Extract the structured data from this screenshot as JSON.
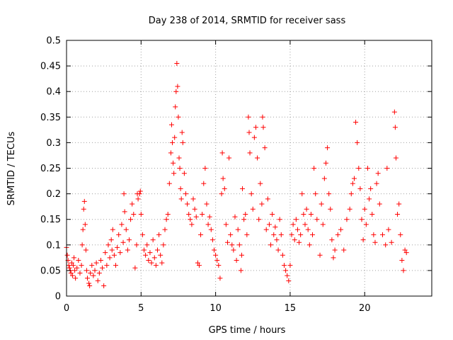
{
  "chart_data": {
    "type": "scatter",
    "title": "Day 238 of 2014, SRMTID for receiver sass",
    "xlabel": "GPS time / hours",
    "ylabel": "SRMTID / TECUs",
    "xlim": [
      0,
      24.5
    ],
    "ylim": [
      0,
      0.5
    ],
    "xticks": [
      0,
      5,
      10,
      15,
      20
    ],
    "xtick_labels": [
      "0",
      "5",
      "10",
      "15",
      "20"
    ],
    "yticks": [
      0,
      0.05,
      0.1,
      0.15,
      0.2,
      0.25,
      0.3,
      0.35,
      0.4,
      0.45,
      0.5
    ],
    "ytick_labels": [
      "0",
      "0.05",
      "0.1",
      "0.15",
      "0.2",
      "0.25",
      "0.3",
      "0.35",
      "0.4",
      "0.45",
      "0.5"
    ],
    "grid": true,
    "marker": "+",
    "marker_color": "#ff0000",
    "series": [
      {
        "name": "SRMTID",
        "points": [
          [
            0.0,
            0.095
          ],
          [
            0.05,
            0.08
          ],
          [
            0.1,
            0.07
          ],
          [
            0.15,
            0.06
          ],
          [
            0.2,
            0.055
          ],
          [
            0.25,
            0.05
          ],
          [
            0.3,
            0.045
          ],
          [
            0.35,
            0.065
          ],
          [
            0.4,
            0.04
          ],
          [
            0.45,
            0.06
          ],
          [
            0.5,
            0.075
          ],
          [
            0.55,
            0.05
          ],
          [
            0.6,
            0.035
          ],
          [
            0.7,
            0.055
          ],
          [
            0.8,
            0.07
          ],
          [
            0.9,
            0.045
          ],
          [
            1.0,
            0.06
          ],
          [
            1.05,
            0.1
          ],
          [
            1.1,
            0.13
          ],
          [
            1.15,
            0.17
          ],
          [
            1.2,
            0.185
          ],
          [
            1.25,
            0.14
          ],
          [
            1.3,
            0.09
          ],
          [
            1.35,
            0.05
          ],
          [
            1.4,
            0.035
          ],
          [
            1.5,
            0.025
          ],
          [
            1.55,
            0.02
          ],
          [
            1.6,
            0.045
          ],
          [
            1.7,
            0.06
          ],
          [
            1.8,
            0.04
          ],
          [
            1.9,
            0.05
          ],
          [
            2.0,
            0.065
          ],
          [
            2.1,
            0.03
          ],
          [
            2.2,
            0.045
          ],
          [
            2.3,
            0.07
          ],
          [
            2.4,
            0.055
          ],
          [
            2.5,
            0.02
          ],
          [
            2.6,
            0.085
          ],
          [
            2.7,
            0.06
          ],
          [
            2.8,
            0.1
          ],
          [
            2.9,
            0.075
          ],
          [
            3.0,
            0.11
          ],
          [
            3.05,
            0.09
          ],
          [
            3.1,
            0.13
          ],
          [
            3.2,
            0.08
          ],
          [
            3.3,
            0.06
          ],
          [
            3.4,
            0.095
          ],
          [
            3.5,
            0.12
          ],
          [
            3.6,
            0.085
          ],
          [
            3.7,
            0.14
          ],
          [
            3.8,
            0.105
          ],
          [
            3.85,
            0.2
          ],
          [
            3.9,
            0.165
          ],
          [
            4.0,
            0.13
          ],
          [
            4.1,
            0.09
          ],
          [
            4.2,
            0.11
          ],
          [
            4.3,
            0.15
          ],
          [
            4.4,
            0.18
          ],
          [
            4.5,
            0.16
          ],
          [
            4.6,
            0.055
          ],
          [
            4.7,
            0.1
          ],
          [
            4.75,
            0.2
          ],
          [
            4.8,
            0.19
          ],
          [
            4.9,
            0.2
          ],
          [
            4.95,
            0.205
          ],
          [
            5.0,
            0.16
          ],
          [
            5.1,
            0.12
          ],
          [
            5.2,
            0.09
          ],
          [
            5.3,
            0.08
          ],
          [
            5.4,
            0.1
          ],
          [
            5.5,
            0.07
          ],
          [
            5.6,
            0.085
          ],
          [
            5.7,
            0.065
          ],
          [
            5.8,
            0.11
          ],
          [
            5.9,
            0.075
          ],
          [
            6.0,
            0.06
          ],
          [
            6.1,
            0.09
          ],
          [
            6.2,
            0.12
          ],
          [
            6.3,
            0.08
          ],
          [
            6.4,
            0.065
          ],
          [
            6.5,
            0.1
          ],
          [
            6.6,
            0.13
          ],
          [
            6.7,
            0.15
          ],
          [
            6.8,
            0.16
          ],
          [
            6.9,
            0.22
          ],
          [
            7.0,
            0.28
          ],
          [
            7.05,
            0.335
          ],
          [
            7.1,
            0.3
          ],
          [
            7.15,
            0.26
          ],
          [
            7.2,
            0.24
          ],
          [
            7.25,
            0.31
          ],
          [
            7.3,
            0.37
          ],
          [
            7.35,
            0.4
          ],
          [
            7.4,
            0.455
          ],
          [
            7.45,
            0.41
          ],
          [
            7.5,
            0.35
          ],
          [
            7.55,
            0.27
          ],
          [
            7.6,
            0.25
          ],
          [
            7.65,
            0.21
          ],
          [
            7.7,
            0.19
          ],
          [
            7.75,
            0.32
          ],
          [
            7.8,
            0.3
          ],
          [
            7.9,
            0.24
          ],
          [
            8.0,
            0.2
          ],
          [
            8.1,
            0.18
          ],
          [
            8.2,
            0.16
          ],
          [
            8.3,
            0.15
          ],
          [
            8.4,
            0.14
          ],
          [
            8.5,
            0.19
          ],
          [
            8.6,
            0.17
          ],
          [
            8.7,
            0.155
          ],
          [
            8.8,
            0.065
          ],
          [
            8.9,
            0.06
          ],
          [
            9.0,
            0.12
          ],
          [
            9.1,
            0.16
          ],
          [
            9.2,
            0.22
          ],
          [
            9.3,
            0.25
          ],
          [
            9.4,
            0.18
          ],
          [
            9.5,
            0.14
          ],
          [
            9.6,
            0.155
          ],
          [
            9.7,
            0.13
          ],
          [
            9.8,
            0.11
          ],
          [
            9.9,
            0.09
          ],
          [
            10.0,
            0.08
          ],
          [
            10.1,
            0.07
          ],
          [
            10.2,
            0.06
          ],
          [
            10.3,
            0.035
          ],
          [
            10.4,
            0.2
          ],
          [
            10.45,
            0.28
          ],
          [
            10.5,
            0.23
          ],
          [
            10.6,
            0.21
          ],
          [
            10.7,
            0.14
          ],
          [
            10.8,
            0.105
          ],
          [
            10.9,
            0.27
          ],
          [
            11.0,
            0.12
          ],
          [
            11.1,
            0.1
          ],
          [
            11.2,
            0.09
          ],
          [
            11.3,
            0.155
          ],
          [
            11.4,
            0.07
          ],
          [
            11.5,
            0.13
          ],
          [
            11.6,
            0.1
          ],
          [
            11.7,
            0.05
          ],
          [
            11.75,
            0.08
          ],
          [
            11.8,
            0.21
          ],
          [
            11.9,
            0.15
          ],
          [
            12.0,
            0.16
          ],
          [
            12.1,
            0.12
          ],
          [
            12.2,
            0.35
          ],
          [
            12.25,
            0.32
          ],
          [
            12.3,
            0.28
          ],
          [
            12.4,
            0.2
          ],
          [
            12.5,
            0.17
          ],
          [
            12.6,
            0.31
          ],
          [
            12.7,
            0.33
          ],
          [
            12.8,
            0.27
          ],
          [
            12.9,
            0.15
          ],
          [
            13.0,
            0.22
          ],
          [
            13.1,
            0.18
          ],
          [
            13.15,
            0.35
          ],
          [
            13.2,
            0.33
          ],
          [
            13.3,
            0.29
          ],
          [
            13.4,
            0.13
          ],
          [
            13.5,
            0.19
          ],
          [
            13.6,
            0.14
          ],
          [
            13.7,
            0.1
          ],
          [
            13.8,
            0.16
          ],
          [
            13.9,
            0.12
          ],
          [
            14.0,
            0.135
          ],
          [
            14.1,
            0.11
          ],
          [
            14.2,
            0.09
          ],
          [
            14.3,
            0.15
          ],
          [
            14.4,
            0.12
          ],
          [
            14.5,
            0.08
          ],
          [
            14.6,
            0.06
          ],
          [
            14.7,
            0.05
          ],
          [
            14.8,
            0.04
          ],
          [
            14.9,
            0.03
          ],
          [
            15.0,
            0.06
          ],
          [
            15.1,
            0.12
          ],
          [
            15.2,
            0.14
          ],
          [
            15.3,
            0.11
          ],
          [
            15.4,
            0.15
          ],
          [
            15.5,
            0.13
          ],
          [
            15.6,
            0.105
          ],
          [
            15.7,
            0.12
          ],
          [
            15.8,
            0.2
          ],
          [
            15.9,
            0.16
          ],
          [
            16.0,
            0.14
          ],
          [
            16.1,
            0.17
          ],
          [
            16.2,
            0.13
          ],
          [
            16.3,
            0.1
          ],
          [
            16.4,
            0.16
          ],
          [
            16.5,
            0.12
          ],
          [
            16.6,
            0.25
          ],
          [
            16.7,
            0.2
          ],
          [
            16.8,
            0.15
          ],
          [
            17.0,
            0.08
          ],
          [
            17.1,
            0.18
          ],
          [
            17.2,
            0.14
          ],
          [
            17.3,
            0.23
          ],
          [
            17.4,
            0.26
          ],
          [
            17.5,
            0.29
          ],
          [
            17.6,
            0.2
          ],
          [
            17.7,
            0.17
          ],
          [
            17.8,
            0.11
          ],
          [
            17.9,
            0.075
          ],
          [
            18.0,
            0.09
          ],
          [
            18.2,
            0.12
          ],
          [
            18.4,
            0.13
          ],
          [
            18.6,
            0.09
          ],
          [
            18.8,
            0.15
          ],
          [
            19.0,
            0.17
          ],
          [
            19.1,
            0.2
          ],
          [
            19.2,
            0.22
          ],
          [
            19.3,
            0.23
          ],
          [
            19.4,
            0.34
          ],
          [
            19.5,
            0.3
          ],
          [
            19.6,
            0.25
          ],
          [
            19.7,
            0.21
          ],
          [
            19.8,
            0.15
          ],
          [
            19.9,
            0.11
          ],
          [
            20.0,
            0.17
          ],
          [
            20.1,
            0.14
          ],
          [
            20.2,
            0.25
          ],
          [
            20.3,
            0.19
          ],
          [
            20.4,
            0.21
          ],
          [
            20.5,
            0.16
          ],
          [
            20.6,
            0.12
          ],
          [
            20.7,
            0.105
          ],
          [
            20.8,
            0.22
          ],
          [
            20.9,
            0.24
          ],
          [
            21.0,
            0.18
          ],
          [
            21.2,
            0.12
          ],
          [
            21.4,
            0.1
          ],
          [
            21.5,
            0.25
          ],
          [
            21.6,
            0.13
          ],
          [
            21.8,
            0.105
          ],
          [
            22.0,
            0.36
          ],
          [
            22.05,
            0.33
          ],
          [
            22.1,
            0.27
          ],
          [
            22.2,
            0.16
          ],
          [
            22.3,
            0.18
          ],
          [
            22.4,
            0.12
          ],
          [
            22.5,
            0.07
          ],
          [
            22.6,
            0.05
          ],
          [
            22.7,
            0.09
          ],
          [
            22.8,
            0.085
          ]
        ]
      }
    ]
  }
}
